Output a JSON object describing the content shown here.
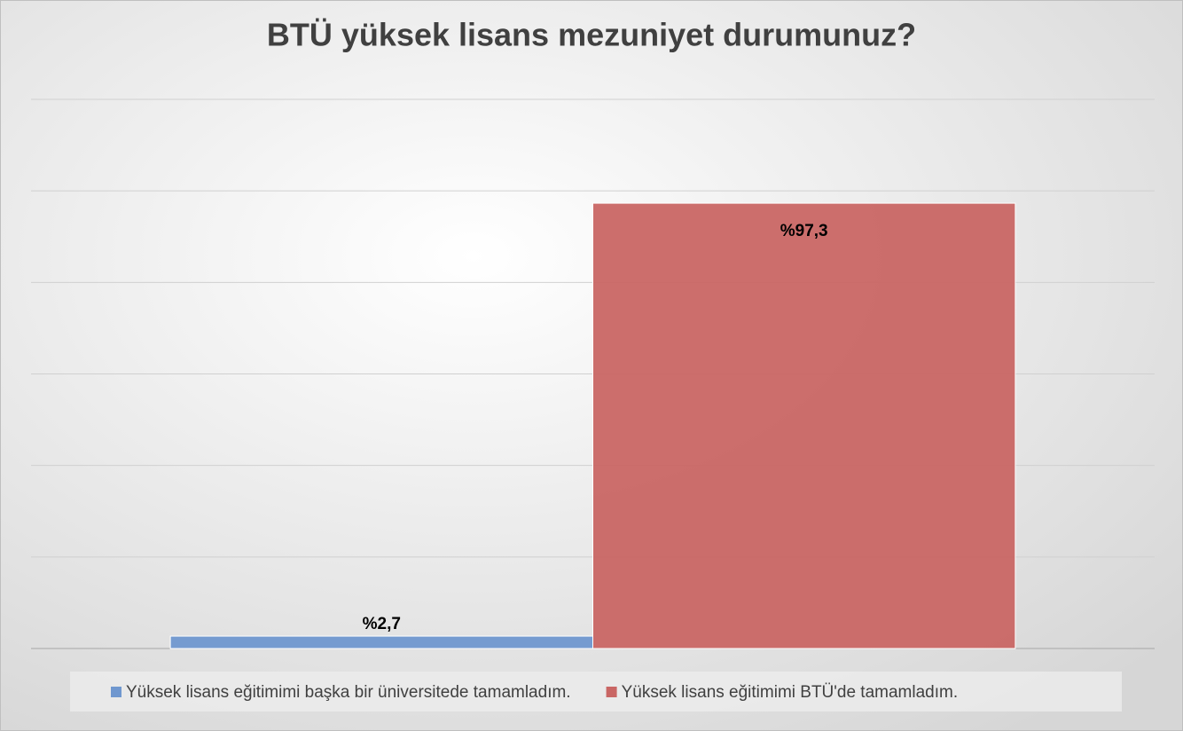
{
  "chart_data": {
    "type": "bar",
    "title": "BTÜ yüksek lisans mezuniyet durumunuz?",
    "categories": [
      null
    ],
    "series": [
      {
        "name": "Yüksek lisans eğitimimi başka bir üniversitede tamamladım.",
        "color": "#6f97cf",
        "values": [
          2.7
        ],
        "value_labels": [
          "%2,7"
        ]
      },
      {
        "name": "Yüksek lisans eğitimimi BTÜ'de tamamladım.",
        "color": "#c96664",
        "values": [
          97.3
        ],
        "value_labels": [
          "%97,3"
        ]
      }
    ],
    "ylim": [
      0,
      120
    ],
    "yticks": [
      0,
      20,
      40,
      60,
      80,
      100,
      120
    ],
    "grid": true,
    "legend": "bottom"
  }
}
